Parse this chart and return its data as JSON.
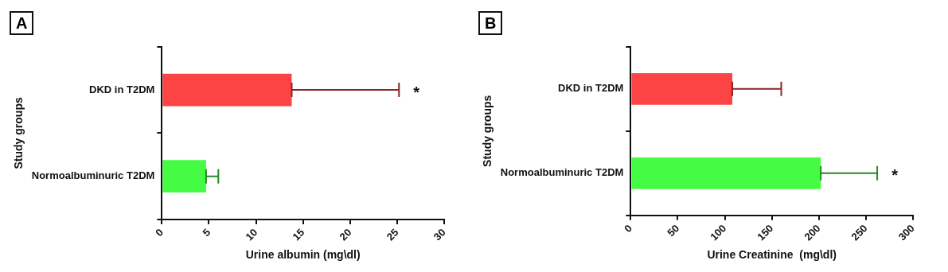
{
  "chart_data": [
    {
      "type": "bar",
      "orientation": "horizontal",
      "title": "A",
      "xlabel": "Urine albumin (mg\\dl)",
      "ylabel": "Study groups",
      "categories": [
        "DKD in T2DM",
        "Normoalbuminuric T2DM"
      ],
      "values": [
        13.8,
        4.7
      ],
      "colors": [
        "#fc4444",
        "#44fc44"
      ],
      "errors": [
        [
          13.8,
          25.2
        ],
        [
          4.7,
          6.0
        ]
      ],
      "xlim": [
        0,
        30
      ],
      "xticks": [
        0,
        5,
        10,
        15,
        20,
        25,
        30
      ],
      "grid": false,
      "legend": false,
      "annotations": [
        {
          "text": "*",
          "x": 25.2,
          "y": "DKD in T2DM"
        }
      ]
    },
    {
      "type": "bar",
      "orientation": "horizontal",
      "title": "B",
      "xlabel": "Urine Creatinine  (mg\\dl)",
      "ylabel": "Study groups",
      "categories": [
        "DKD in T2DM",
        "Normoalbuminuric T2DM"
      ],
      "values": [
        108,
        202
      ],
      "colors": [
        "#fc4444",
        "#44fc44"
      ],
      "errors": [
        [
          108,
          160
        ],
        [
          202,
          262
        ]
      ],
      "xlim": [
        0,
        300
      ],
      "xticks": [
        0,
        50,
        100,
        150,
        200,
        250,
        300
      ],
      "grid": false,
      "legend": false,
      "annotations": [
        {
          "text": "*",
          "x": 262,
          "y": "Normoalbuminuric T2DM"
        }
      ]
    }
  ]
}
